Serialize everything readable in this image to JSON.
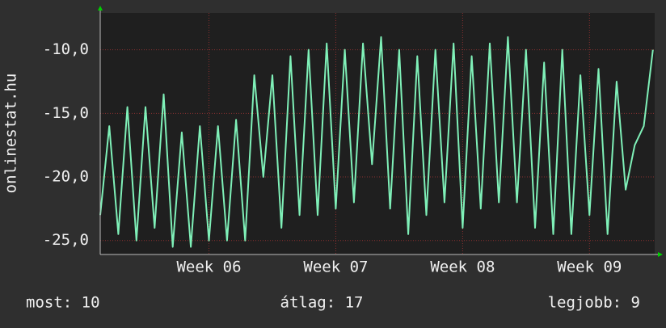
{
  "chart_data": {
    "type": "line",
    "y_label": "onlinestat.hu",
    "x": [
      0,
      0.5,
      1,
      1.5,
      2,
      2.5,
      3,
      3.5,
      4,
      4.5,
      5,
      5.5,
      6,
      6.5,
      7,
      7.5,
      8,
      8.5,
      9,
      9.5,
      10,
      10.5,
      11,
      11.5,
      12,
      12.5,
      13,
      13.5,
      14,
      14.5,
      15,
      15.5,
      16,
      16.5,
      17,
      17.5,
      18,
      18.5,
      19,
      19.5,
      20,
      20.5,
      21,
      21.5,
      22,
      22.5,
      23,
      23.5,
      24,
      24.5,
      25,
      25.5,
      26,
      26.5,
      27,
      27.5,
      28,
      28.5,
      29,
      29.5,
      30,
      30.5
    ],
    "series": [
      {
        "color": "#7ff0b8",
        "values": [
          -23,
          -16,
          -24.5,
          -14.5,
          -25,
          -14.5,
          -24,
          -13.5,
          -25.5,
          -16.5,
          -25.5,
          -16,
          -25,
          -16,
          -25,
          -15.5,
          -25,
          -12,
          -20,
          -12,
          -24,
          -10.5,
          -23,
          -10,
          -23,
          -9.5,
          -22.5,
          -10,
          -22,
          -9.5,
          -19,
          -9,
          -22.5,
          -10,
          -24.5,
          -10.5,
          -23,
          -10,
          -22,
          -9.5,
          -24,
          -10.5,
          -22.5,
          -9.5,
          -22,
          -9,
          -22,
          -10,
          -24,
          -11,
          -24.5,
          -10,
          -24.5,
          -12,
          -23,
          -11.5,
          -24.5,
          -12.5,
          -21,
          -17.5,
          -16,
          -10
        ]
      }
    ],
    "xlim": [
      0,
      30.6
    ],
    "xticks": [
      {
        "value": 6,
        "label": "Week 06"
      },
      {
        "value": 13,
        "label": "Week 07"
      },
      {
        "value": 20,
        "label": "Week 08"
      },
      {
        "value": 27,
        "label": "Week 09"
      }
    ],
    "ylim": [
      -26.1,
      -7.1
    ],
    "yticks": [
      {
        "value": -25,
        "label": "-25,0"
      },
      {
        "value": -20,
        "label": "-20,0"
      },
      {
        "value": -15,
        "label": "-15,0"
      },
      {
        "value": -10,
        "label": "-10,0"
      }
    ],
    "grid": true,
    "footer": {
      "current": "most: 10",
      "average": "átlag: 17",
      "best": "legjobb: 9"
    }
  }
}
